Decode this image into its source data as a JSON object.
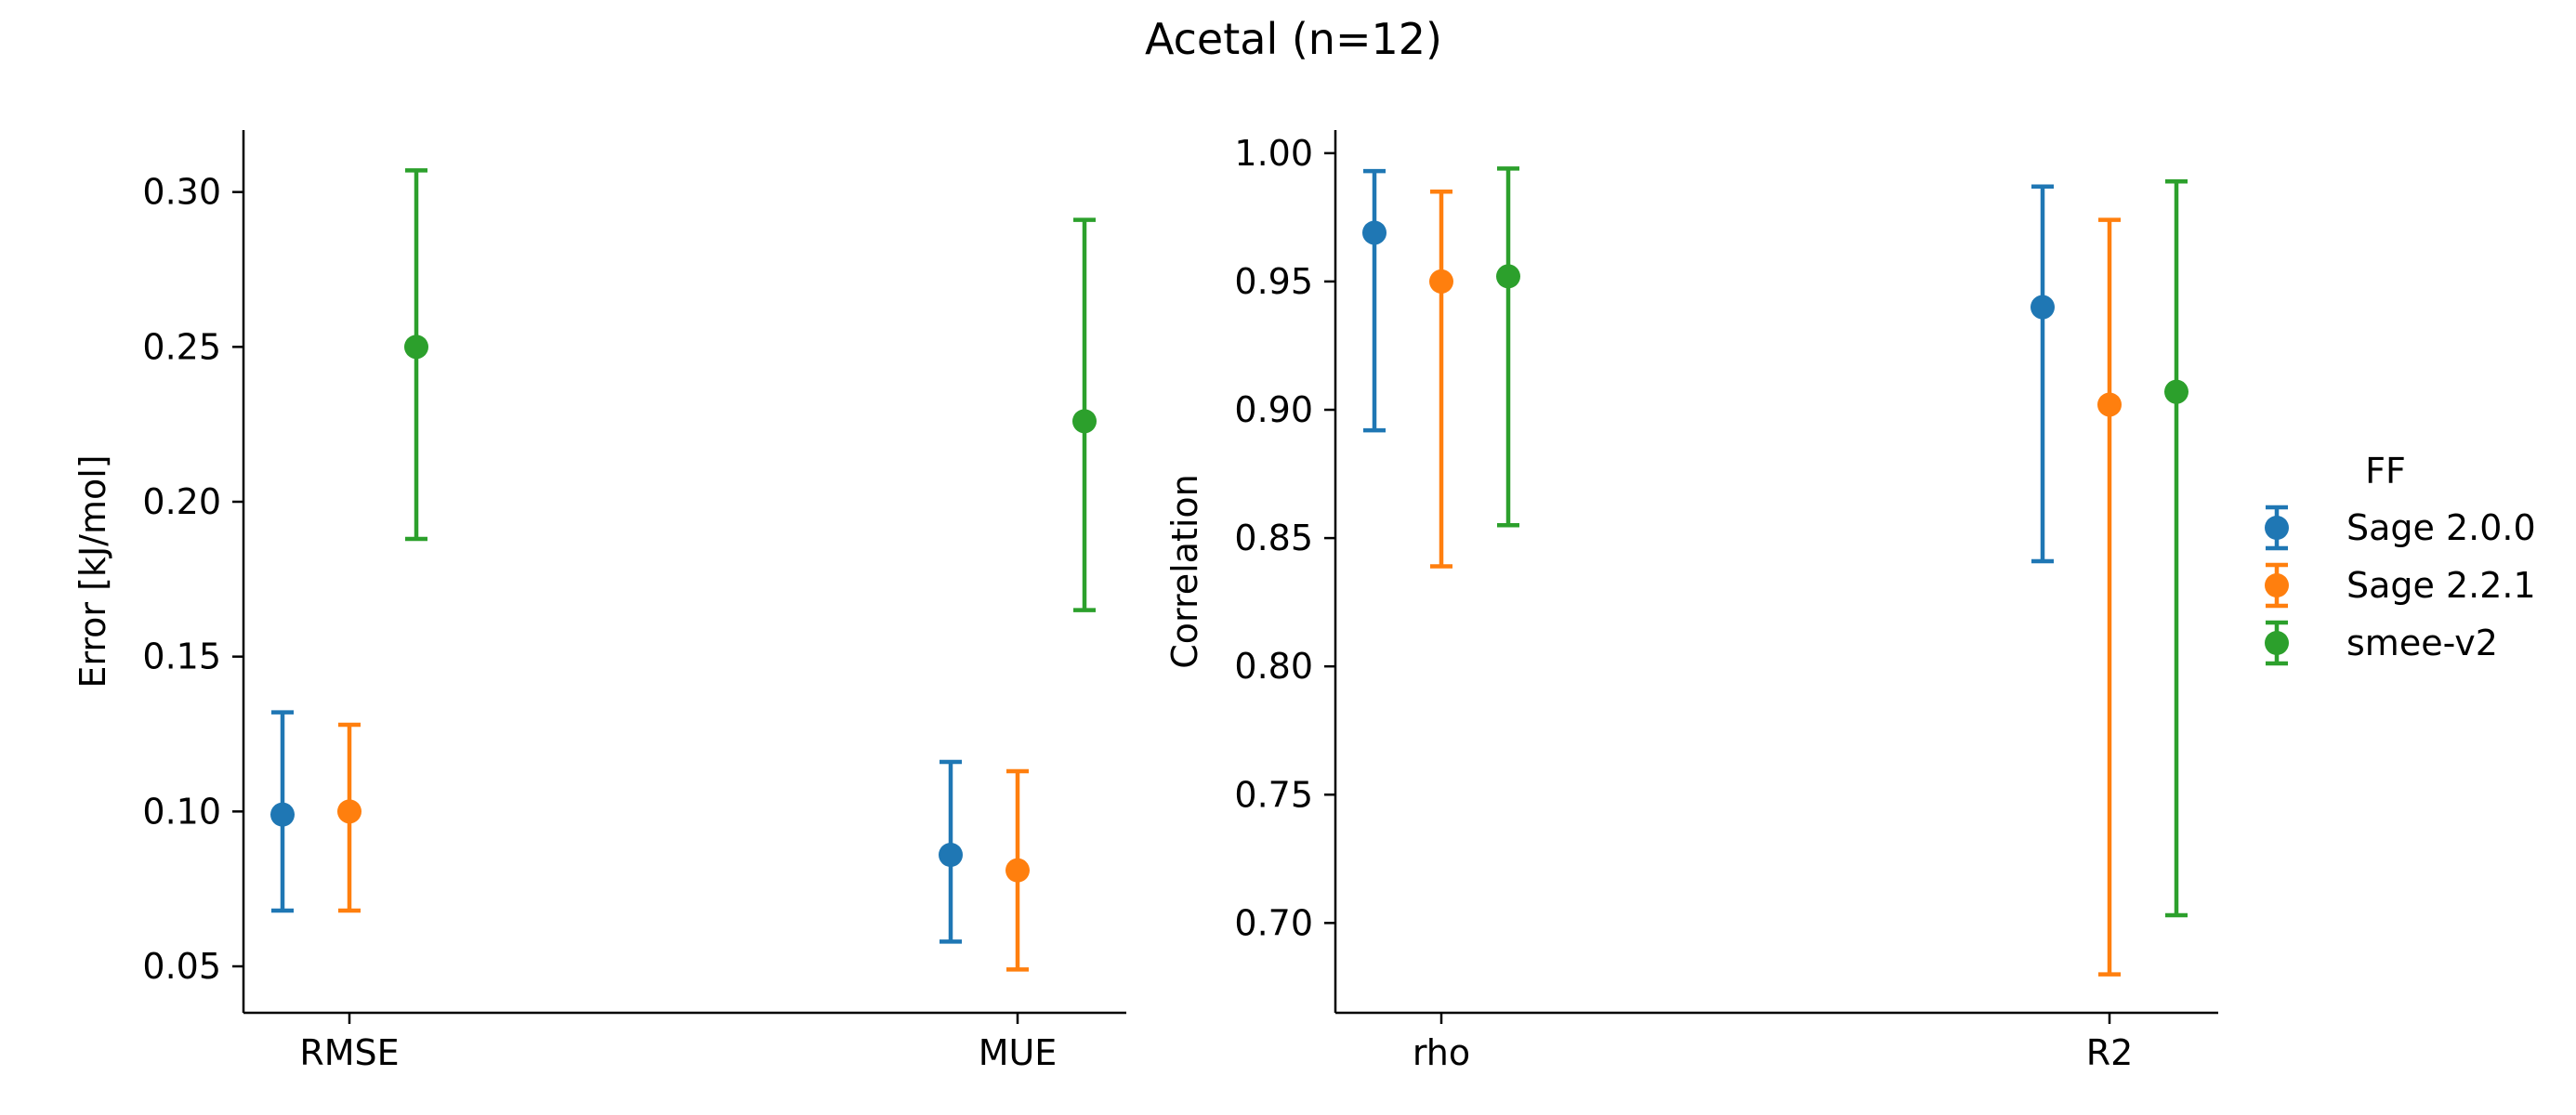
{
  "figure": {
    "title": "Acetal (n=12)"
  },
  "chart_data": [
    {
      "type": "scatter",
      "subtype": "point-with-error-bars",
      "title": "",
      "xlabel": "",
      "ylabel": "Error [kJ/mol]",
      "categories": [
        "RMSE",
        "MUE"
      ],
      "ylim": [
        0.035,
        0.32
      ],
      "yticks": [
        0.05,
        0.1,
        0.15,
        0.2,
        0.25,
        0.3
      ],
      "ytick_labels": [
        "0.05",
        "0.10",
        "0.15",
        "0.20",
        "0.25",
        "0.30"
      ],
      "grid": false,
      "series": [
        {
          "name": "Sage 2.0.0",
          "color": "#1f77b4",
          "values": [
            0.099,
            0.086
          ],
          "lower": [
            0.068,
            0.058
          ],
          "upper": [
            0.132,
            0.116
          ]
        },
        {
          "name": "Sage 2.2.1",
          "color": "#ff7f0e",
          "values": [
            0.1,
            0.081
          ],
          "lower": [
            0.068,
            0.049
          ],
          "upper": [
            0.128,
            0.113
          ]
        },
        {
          "name": "smee-v2",
          "color": "#2ca02c",
          "values": [
            0.25,
            0.226
          ],
          "lower": [
            0.188,
            0.165
          ],
          "upper": [
            0.307,
            0.291
          ]
        }
      ]
    },
    {
      "type": "scatter",
      "subtype": "point-with-error-bars",
      "title": "",
      "xlabel": "",
      "ylabel": "Correlation",
      "categories": [
        "rho",
        "R2"
      ],
      "ylim": [
        0.665,
        1.009
      ],
      "yticks": [
        0.7,
        0.75,
        0.8,
        0.85,
        0.9,
        0.95,
        1.0
      ],
      "ytick_labels": [
        "0.70",
        "0.75",
        "0.80",
        "0.85",
        "0.90",
        "0.95",
        "1.00"
      ],
      "grid": false,
      "series": [
        {
          "name": "Sage 2.0.0",
          "color": "#1f77b4",
          "values": [
            0.969,
            0.94
          ],
          "lower": [
            0.892,
            0.841
          ],
          "upper": [
            0.993,
            0.987
          ]
        },
        {
          "name": "Sage 2.2.1",
          "color": "#ff7f0e",
          "values": [
            0.95,
            0.902
          ],
          "lower": [
            0.839,
            0.68
          ],
          "upper": [
            0.985,
            0.974
          ]
        },
        {
          "name": "smee-v2",
          "color": "#2ca02c",
          "values": [
            0.952,
            0.907
          ],
          "lower": [
            0.855,
            0.703
          ],
          "upper": [
            0.994,
            0.989
          ]
        }
      ]
    }
  ],
  "legend": {
    "title": "FF",
    "placement": "right",
    "entries": [
      "Sage 2.0.0",
      "Sage 2.2.1",
      "smee-v2"
    ]
  }
}
